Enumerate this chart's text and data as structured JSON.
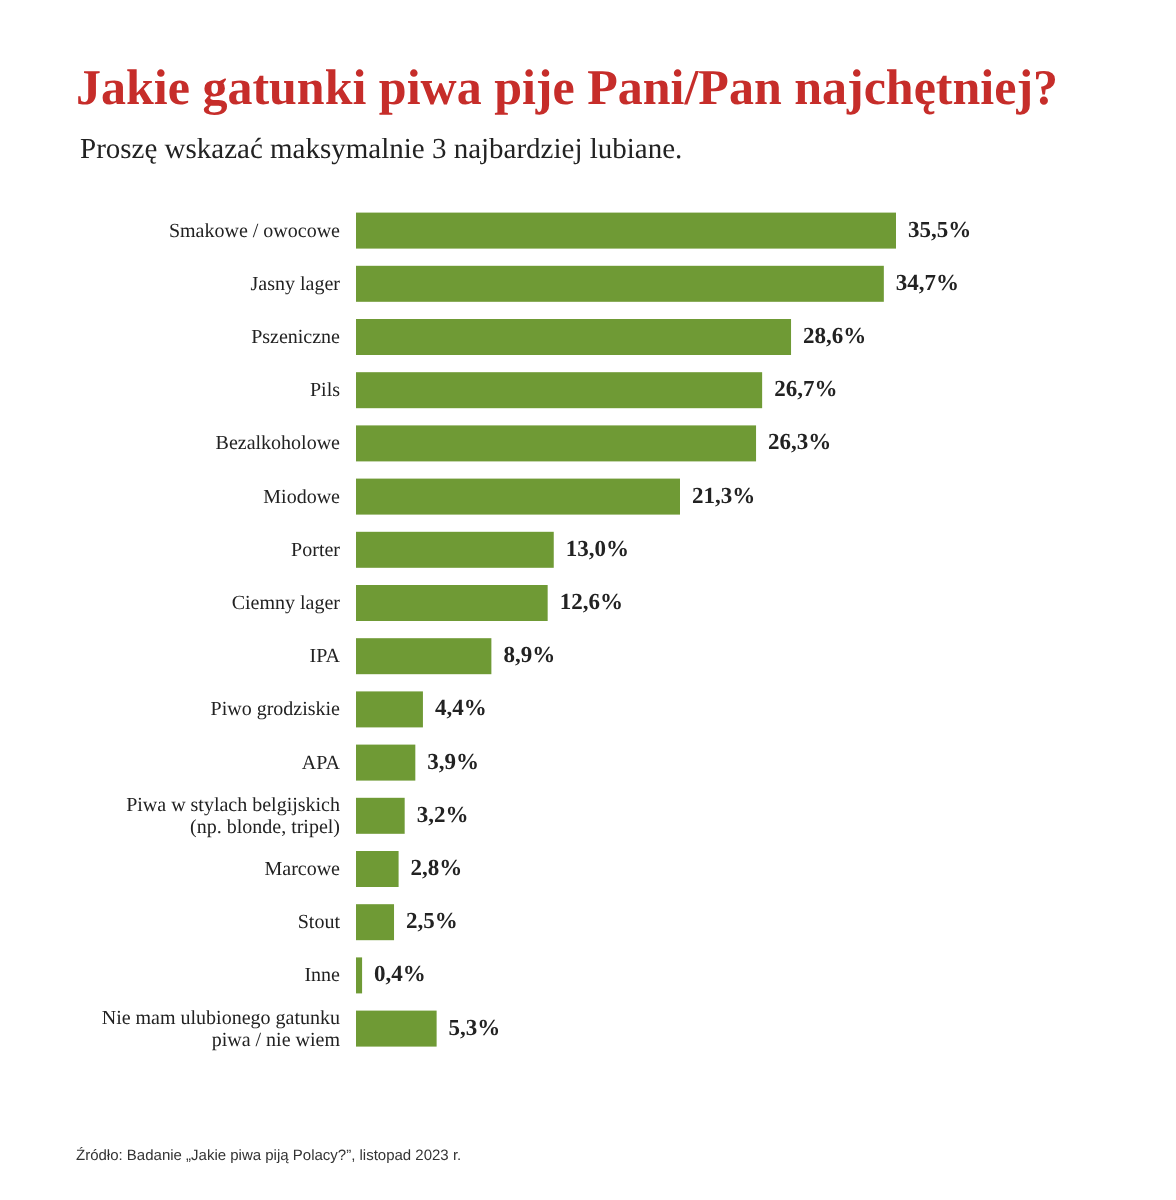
{
  "chart_data": {
    "type": "bar",
    "orientation": "horizontal",
    "title": "Jakie gatunki piwa pije Pani/Pan najchętniej?",
    "subtitle": "Proszę wskazać maksymalnie 3 najbardziej lubiane.",
    "categories": [
      "Smakowe / owocowe",
      "Jasny lager",
      "Pszeniczne",
      "Pils",
      "Bezalkoholowe",
      "Miodowe",
      "Porter",
      "Ciemny lager",
      "IPA",
      "Piwo grodziskie",
      "APA",
      "Piwa w stylach belgijskich\n(np. blonde, tripel)",
      "Marcowe",
      "Stout",
      "Inne",
      "Nie mam ulubionego gatunku\npiwa / nie wiem"
    ],
    "values": [
      35.5,
      34.7,
      28.6,
      26.7,
      26.3,
      21.3,
      13.0,
      12.6,
      8.9,
      4.4,
      3.9,
      3.2,
      2.8,
      2.5,
      0.4,
      5.3
    ],
    "value_labels": [
      "35,5%",
      "34,7%",
      "28,6%",
      "26,7%",
      "26,3%",
      "21,3%",
      "13,0%",
      "12,6%",
      "8,9%",
      "4,4%",
      "3,9%",
      "3,2%",
      "2,8%",
      "2,5%",
      "0,4%",
      "5,3%"
    ],
    "color": "#6f9a35",
    "annotations": [
      "Źródło: Badanie „Jakie piwa piją Polacy?”, listopad 2023 r."
    ]
  }
}
